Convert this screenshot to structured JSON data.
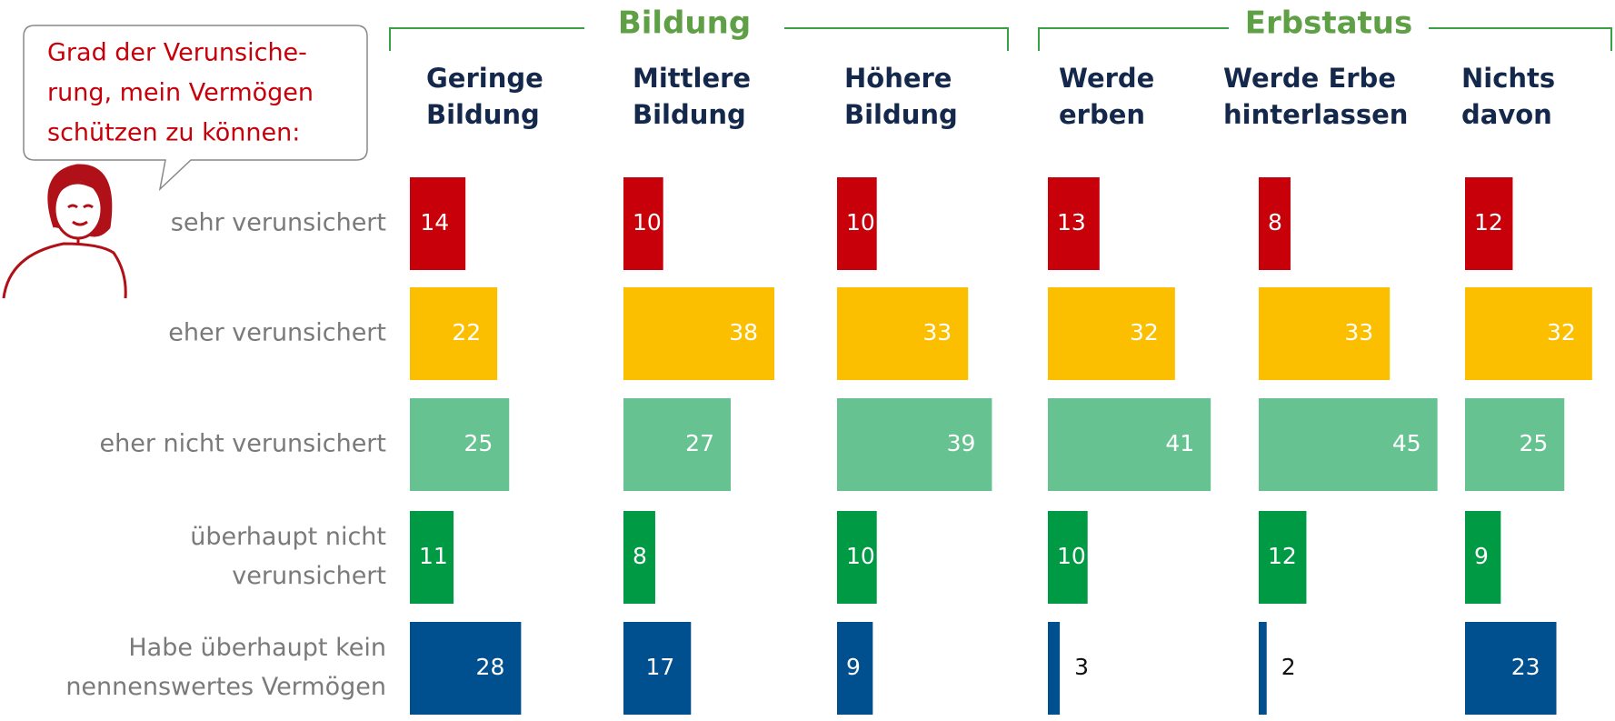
{
  "chart_data": {
    "type": "bar",
    "orientation": "horizontal",
    "callout": [
      "Grad der Verunsiche-",
      "rung, mein Vermögen",
      "schützen zu können:"
    ],
    "categories": [
      [
        "sehr verunsichert"
      ],
      [
        "eher verunsichert"
      ],
      [
        "eher nicht verunsichert"
      ],
      [
        "überhaupt nicht",
        "verunsichert"
      ],
      [
        "Habe überhaupt kein",
        "nennenswertes Vermögen"
      ]
    ],
    "colors": [
      "#c8000a",
      "#fbbf00",
      "#66c391",
      "#009a44",
      "#00508f"
    ],
    "groups": [
      {
        "title": "Bildung",
        "panels": [
          {
            "title": [
              "Geringe",
              "Bildung"
            ],
            "values": [
              14,
              22,
              25,
              11,
              28
            ]
          },
          {
            "title": [
              "Mittlere",
              "Bildung"
            ],
            "values": [
              10,
              38,
              27,
              8,
              17
            ]
          },
          {
            "title": [
              "Höhere",
              "Bildung"
            ],
            "values": [
              10,
              33,
              39,
              10,
              9
            ]
          }
        ]
      },
      {
        "title": "Erbstatus",
        "panels": [
          {
            "title": [
              "Werde",
              "erben"
            ],
            "values": [
              13,
              32,
              41,
              10,
              3
            ]
          },
          {
            "title": [
              "Werde Erbe",
              "hinterlassen"
            ],
            "values": [
              8,
              33,
              45,
              12,
              2
            ]
          },
          {
            "title": [
              "Nichts",
              "davon"
            ],
            "values": [
              12,
              32,
              25,
              9,
              23
            ]
          }
        ]
      }
    ]
  }
}
